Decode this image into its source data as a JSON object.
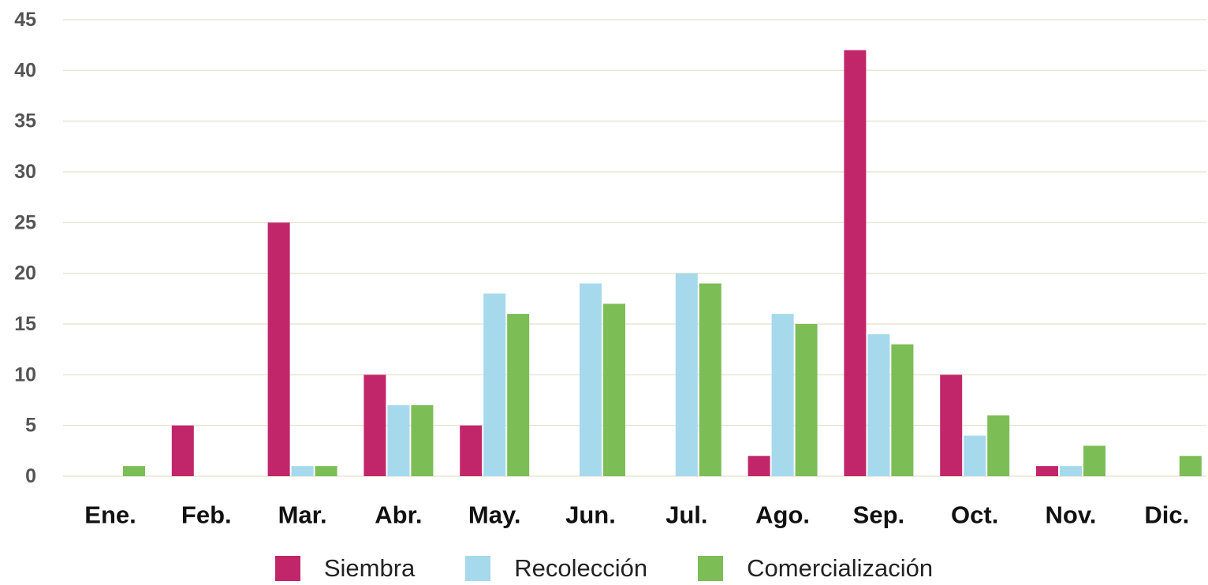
{
  "chart_data": {
    "type": "bar",
    "title": "",
    "xlabel": "",
    "ylabel": "",
    "categories": [
      "Ene.",
      "Feb.",
      "Mar.",
      "Abr.",
      "May.",
      "Jun.",
      "Jul.",
      "Ago.",
      "Sep.",
      "Oct.",
      "Nov.",
      "Dic."
    ],
    "series": [
      {
        "name": "Siembra",
        "color": "#c2266a",
        "values": [
          0,
          5,
          25,
          10,
          5,
          0,
          0,
          2,
          42,
          10,
          1,
          0
        ]
      },
      {
        "name": "Recolección",
        "color": "#a6d9ec",
        "values": [
          0,
          0,
          1,
          7,
          18,
          19,
          20,
          16,
          14,
          4,
          1,
          0
        ]
      },
      {
        "name": "Comercialización",
        "color": "#7cbd55",
        "values": [
          1,
          0,
          1,
          7,
          16,
          17,
          19,
          15,
          13,
          6,
          3,
          2
        ]
      }
    ],
    "ylim": [
      0,
      45
    ],
    "yticks": [
      0,
      5,
      10,
      15,
      20,
      25,
      30,
      35,
      40,
      45
    ],
    "grid": true,
    "legend_position": "bottom"
  }
}
